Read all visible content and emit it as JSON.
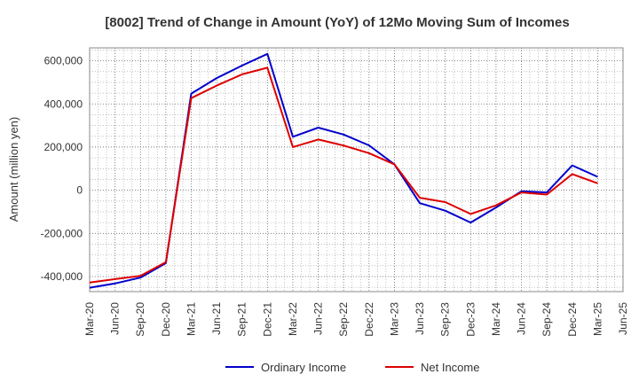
{
  "chart_data": {
    "type": "line",
    "title": "[8002]  Trend of Change in Amount (YoY) of 12Mo Moving Sum of Incomes",
    "xlabel": "",
    "ylabel": "Amount (million yen)",
    "ylim": [
      -470000,
      660000
    ],
    "yticks": [
      -400000,
      -200000,
      0,
      200000,
      400000,
      600000
    ],
    "ytick_labels": [
      "-400,000",
      "-200,000",
      "0",
      "200,000",
      "400,000",
      "600,000"
    ],
    "x_tick_labels": [
      "Mar-20",
      "Jun-20",
      "Sep-20",
      "Dec-20",
      "Mar-21",
      "Jun-21",
      "Sep-21",
      "Dec-21",
      "Mar-22",
      "Jun-22",
      "Sep-22",
      "Dec-22",
      "Mar-23",
      "Jun-23",
      "Sep-23",
      "Dec-23",
      "Mar-24",
      "Jun-24",
      "Sep-24",
      "Dec-24",
      "Mar-25",
      "Jun-25"
    ],
    "grid": true,
    "legend_position": "bottom",
    "series": [
      {
        "name": "Ordinary Income",
        "color": "#0000cc",
        "values": [
          -452000,
          -432000,
          -405000,
          -338000,
          448000,
          520000,
          578000,
          632000,
          248000,
          290000,
          258000,
          208000,
          120000,
          -60000,
          -95000,
          -150000,
          -80000,
          -5000,
          -10000,
          115000,
          62000
        ]
      },
      {
        "name": "Net Income",
        "color": "#dd0000",
        "values": [
          -428000,
          -412000,
          -397000,
          -333000,
          427000,
          485000,
          537000,
          568000,
          200000,
          235000,
          207000,
          172000,
          120000,
          -35000,
          -55000,
          -110000,
          -70000,
          -10000,
          -20000,
          75000,
          32000
        ]
      }
    ]
  }
}
